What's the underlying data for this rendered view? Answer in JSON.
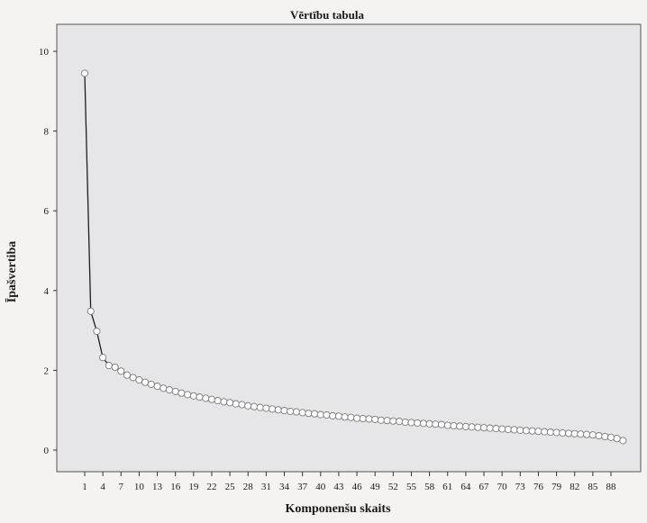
{
  "chart_data": {
    "type": "line",
    "title": "Vērtību tabula",
    "xlabel": "Komponenšu skaits",
    "ylabel": "Īpašvertiba",
    "xlim": [
      0,
      92
    ],
    "ylim": [
      -0.5,
      10.6
    ],
    "x_ticks": [
      1,
      4,
      7,
      10,
      13,
      16,
      19,
      22,
      25,
      28,
      31,
      34,
      37,
      40,
      43,
      46,
      49,
      52,
      55,
      58,
      61,
      64,
      67,
      70,
      73,
      76,
      79,
      82,
      85,
      88
    ],
    "y_ticks": [
      0,
      2,
      4,
      6,
      8,
      10
    ],
    "grid": false,
    "legend": "none",
    "colors": {
      "plot_bg": "#e6e5e8",
      "line": "#1e1e1e",
      "marker_fill": "#ffffff",
      "marker_stroke": "#7a7a7a"
    },
    "series": [
      {
        "x": [
          1,
          2,
          3,
          4,
          5,
          6,
          7,
          8,
          9,
          10,
          11,
          12,
          13,
          14,
          15,
          16,
          17,
          18,
          19,
          20,
          21,
          22,
          23,
          24,
          25,
          26,
          27,
          28,
          29,
          30,
          31,
          32,
          33,
          34,
          35,
          36,
          37,
          38,
          39,
          40,
          41,
          42,
          43,
          44,
          45,
          46,
          47,
          48,
          49,
          50,
          51,
          52,
          53,
          54,
          55,
          56,
          57,
          58,
          59,
          60,
          61,
          62,
          63,
          64,
          65,
          66,
          67,
          68,
          69,
          70,
          71,
          72,
          73,
          74,
          75,
          76,
          77,
          78,
          79,
          80,
          81,
          82,
          83,
          84,
          85,
          86,
          87,
          88,
          89,
          90
        ],
        "values": [
          9.45,
          3.48,
          2.98,
          2.32,
          2.12,
          2.08,
          1.98,
          1.88,
          1.82,
          1.76,
          1.7,
          1.65,
          1.6,
          1.55,
          1.51,
          1.47,
          1.43,
          1.39,
          1.36,
          1.33,
          1.3,
          1.27,
          1.24,
          1.21,
          1.19,
          1.16,
          1.14,
          1.11,
          1.09,
          1.07,
          1.05,
          1.03,
          1.01,
          0.99,
          0.97,
          0.96,
          0.94,
          0.92,
          0.91,
          0.89,
          0.88,
          0.86,
          0.85,
          0.83,
          0.82,
          0.8,
          0.79,
          0.78,
          0.77,
          0.75,
          0.74,
          0.73,
          0.72,
          0.7,
          0.69,
          0.68,
          0.67,
          0.66,
          0.65,
          0.64,
          0.62,
          0.61,
          0.6,
          0.59,
          0.58,
          0.57,
          0.56,
          0.55,
          0.54,
          0.53,
          0.52,
          0.51,
          0.5,
          0.49,
          0.48,
          0.47,
          0.46,
          0.45,
          0.44,
          0.43,
          0.42,
          0.41,
          0.4,
          0.39,
          0.38,
          0.36,
          0.34,
          0.32,
          0.29,
          0.24
        ]
      }
    ]
  }
}
